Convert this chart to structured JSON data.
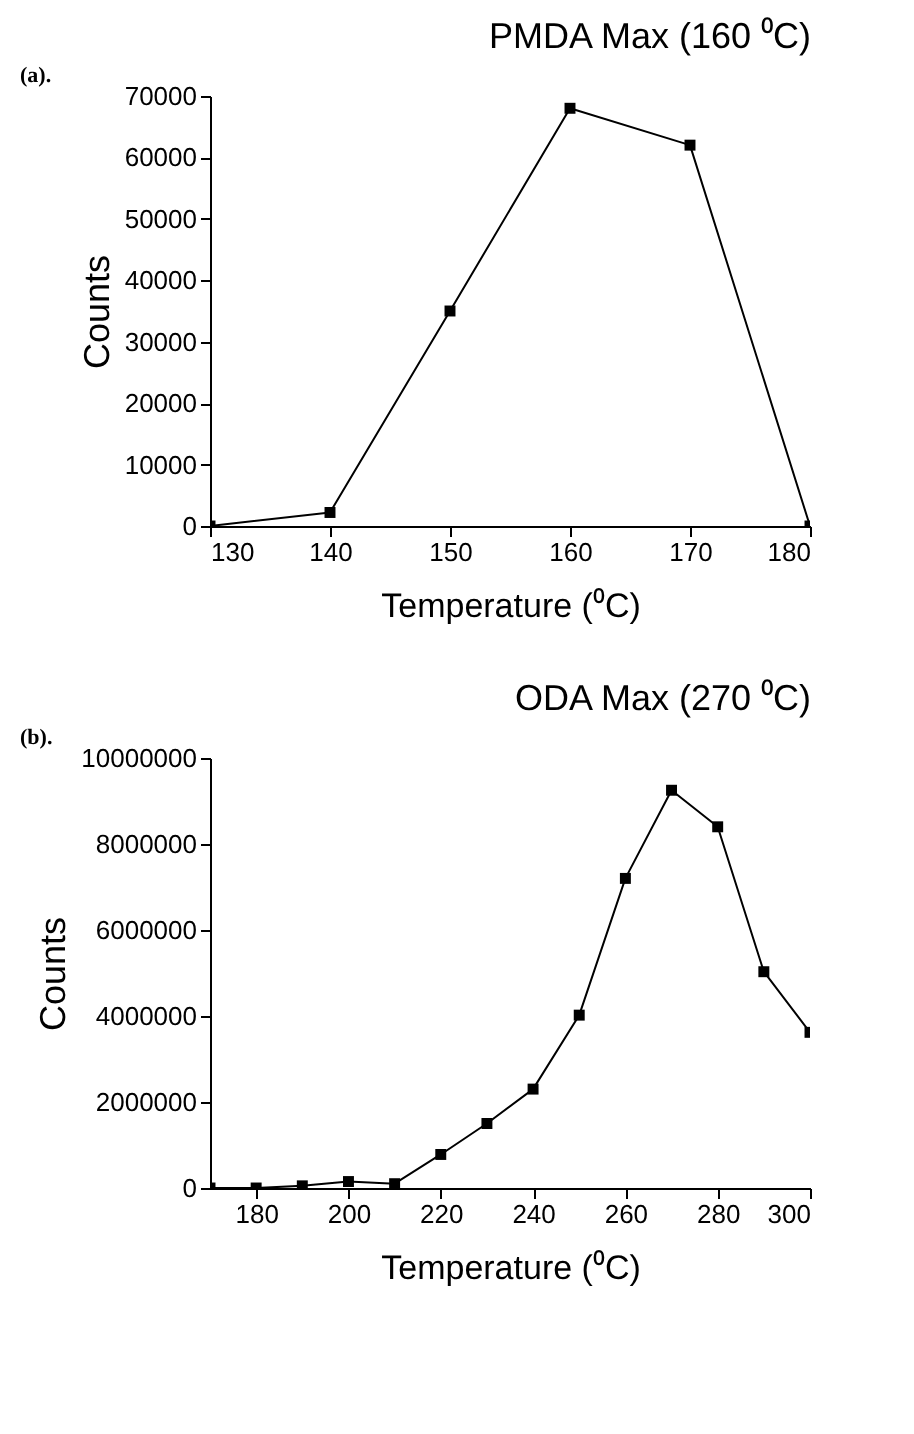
{
  "chart_data": [
    {
      "type": "line",
      "title": "PMDA Max (160 ⁰C)",
      "xlabel": "Temperature (⁰C)",
      "ylabel": "Counts",
      "annotations": [
        "(a)."
      ],
      "x": [
        130,
        140,
        150,
        160,
        170,
        180
      ],
      "series": [
        {
          "color": "#000000",
          "values": [
            0,
            2200,
            35000,
            68000,
            62000,
            0
          ]
        }
      ],
      "xlim": [
        130,
        180
      ],
      "xticks": [
        130,
        140,
        150,
        160,
        170,
        180
      ],
      "ylim": [
        0,
        70000
      ],
      "yticks": [
        0,
        10000,
        20000,
        30000,
        40000,
        50000,
        60000,
        70000
      ],
      "grid": false,
      "marker": "square",
      "line_style": "solid"
    },
    {
      "type": "line",
      "title": "ODA Max (270 ⁰C)",
      "xlabel": "Temperature (⁰C)",
      "ylabel": "Counts",
      "annotations": [
        "(b)."
      ],
      "x": [
        170,
        180,
        190,
        200,
        210,
        220,
        230,
        240,
        250,
        260,
        270,
        280,
        290,
        300
      ],
      "series": [
        {
          "color": "#000000",
          "values": [
            0,
            0,
            50000,
            150000,
            100000,
            780000,
            1500000,
            2300000,
            4020000,
            7200000,
            9250000,
            8400000,
            5030000,
            3620000
          ]
        }
      ],
      "xlim": [
        170,
        300
      ],
      "xticks": [
        180,
        200,
        220,
        240,
        260,
        280,
        300
      ],
      "ylim": [
        0,
        10000000
      ],
      "yticks": [
        0,
        2000000,
        4000000,
        6000000,
        8000000,
        10000000
      ],
      "grid": false,
      "marker": "square",
      "line_style": "solid"
    }
  ]
}
